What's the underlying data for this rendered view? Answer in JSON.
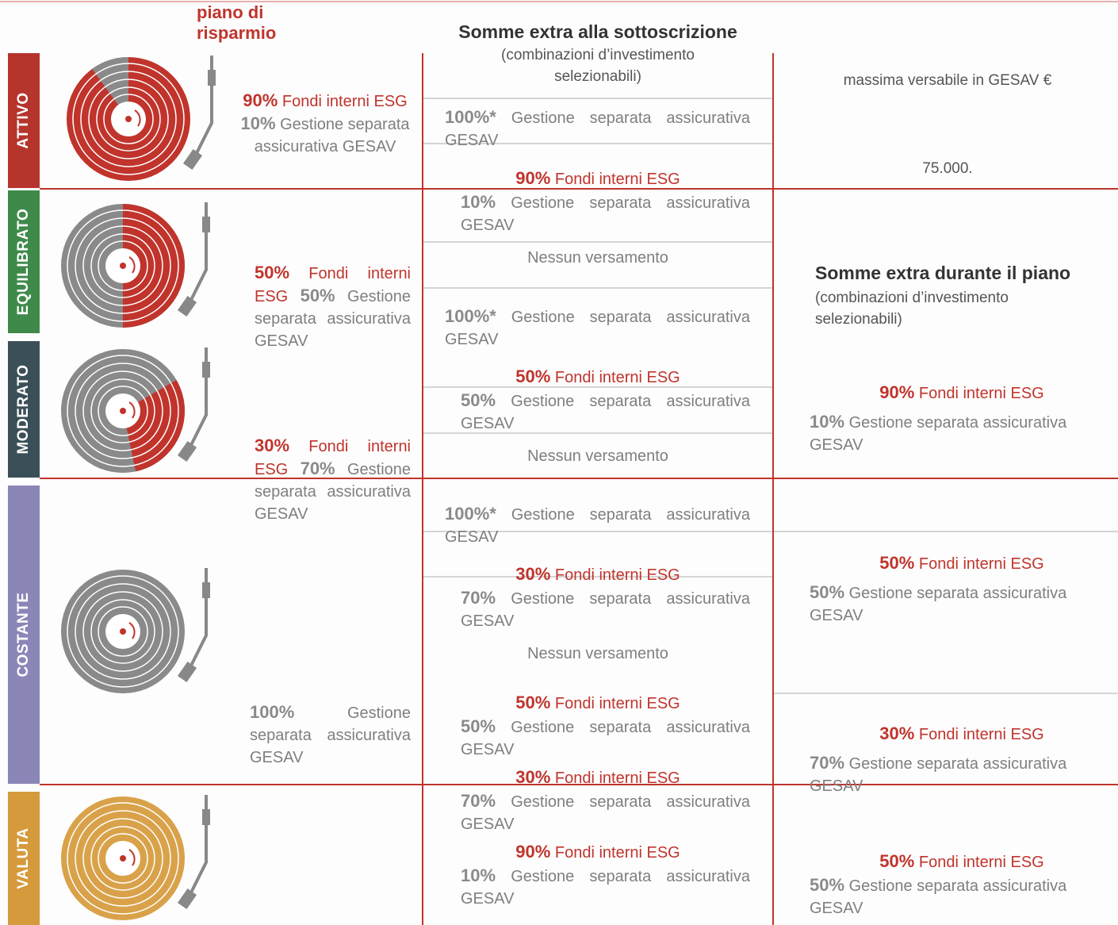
{
  "header": {
    "piano_label": "piano di risparmio",
    "sottoscrizione_title": "Somme extra alla sottoscrizione",
    "sottoscrizione_subtitle": "(combinazioni d’investimento selezionabili)",
    "massima": "massima versabile in GESAV €",
    "massima_value": "75.000.",
    "durante_title": "Somme extra durante il piano",
    "durante_subtitle": "(combinazioni d’investimento selezionabili)"
  },
  "profiles": [
    "ATTIVO",
    "EQUILIBRATO",
    "MODERATO",
    "COSTANTE",
    "VALUTA"
  ],
  "piano": [
    {
      "fondi_pct": "90%",
      "fondi": "Fondi interni ESG",
      "gestione_pct": "10%",
      "gestione": "Gestione separata assicurativa GESAV"
    },
    {
      "fondi_pct": "50%",
      "fondi": "Fondi interni ESG",
      "gestione_pct": "50%",
      "gestione": "Gestione separata assicurativa GESAV"
    },
    {
      "fondi_pct": "30%",
      "fondi": "Fondi interni ESG",
      "gestione_pct": "70%",
      "gestione": "Gestione separata assicurativa GESAV"
    },
    {
      "gestione_pct": "100%",
      "gestione": "Gestione separata assicurativa GESAV"
    }
  ],
  "sottoscrizione": [
    {
      "gestione_pct": "100%*",
      "gestione": "Gestione separata assicurativa GESAV"
    },
    {
      "fondi_pct": "90%",
      "fondi": "Fondi interni ESG",
      "gestione_pct": "10%",
      "gestione": "Gestione separata assicurativa GESAV"
    },
    {
      "text": "Nessun versamento"
    },
    {
      "gestione_pct": "100%*",
      "gestione": "Gestione separata assicurativa GESAV"
    },
    {
      "fondi_pct": "50%",
      "fondi": "Fondi interni ESG",
      "gestione_pct": "50%",
      "gestione": "Gestione separata assicurativa GESAV"
    },
    {
      "text": "Nessun versamento"
    },
    {
      "gestione_pct": "100%*",
      "gestione": "Gestione separata assicurativa GESAV"
    },
    {
      "fondi_pct": "30%",
      "fondi": "Fondi interni ESG",
      "gestione_pct": "70%",
      "gestione": "Gestione separata assicurativa GESAV"
    },
    {
      "text": "Nessun versamento"
    },
    {
      "fondi_pct": "50%",
      "fondi": "Fondi interni ESG",
      "gestione_pct": "50%",
      "gestione": "Gestione separata assicurativa GESAV"
    },
    {
      "fondi_pct": "30%",
      "fondi": "Fondi interni ESG",
      "gestione_pct": "70%",
      "gestione": "Gestione separata assicurativa GESAV"
    },
    {
      "fondi_pct": "90%",
      "fondi": "Fondi interni ESG",
      "gestione_pct": "10%",
      "gestione": "Gestione separata assicurativa GESAV"
    }
  ],
  "durante": [
    {
      "fondi_pct": "90%",
      "fondi": "Fondi interni ESG",
      "gestione_pct": "10%",
      "gestione": "Gestione separata assicurativa GESAV"
    },
    {
      "fondi_pct": "50%",
      "fondi": "Fondi interni ESG",
      "gestione_pct": "50%",
      "gestione": "Gestione separata assicurativa GESAV"
    },
    {
      "fondi_pct": "30%",
      "fondi": "Fondi interni ESG",
      "gestione_pct": "70%",
      "gestione": "Gestione separata assicurativa GESAV"
    },
    {
      "fondi_pct": "50%",
      "fondi": "Fondi interni ESG",
      "gestione_pct": "50%",
      "gestione": "Gestione separata assicurativa GESAV"
    }
  ]
}
